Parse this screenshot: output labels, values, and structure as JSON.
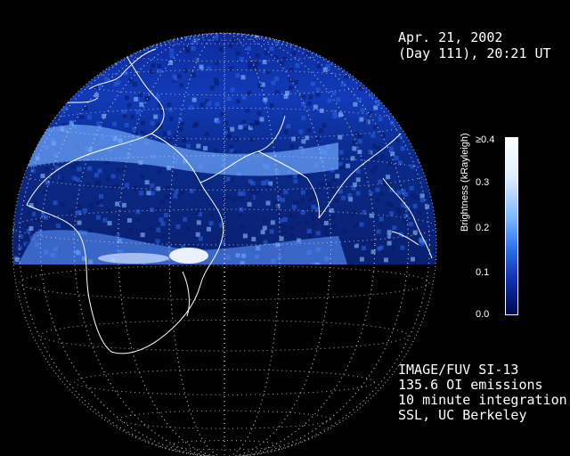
{
  "header": {
    "date": "Apr. 21, 2002",
    "day": "(Day 111), 20:21 UT"
  },
  "colorbar": {
    "label": "Brightness (kRayleigh)",
    "ticks": [
      "≥0.4",
      "0.3",
      "0.2",
      "0.1",
      "0.0"
    ]
  },
  "info": {
    "line1": "IMAGE/FUV SI-13",
    "line2": "135.6 OI emissions",
    "line3": "10 minute integration",
    "line4": "SSL, UC Berkeley"
  },
  "colors": {
    "background": "#000000",
    "emission_low": "#0a1a7a",
    "emission_high": "#ffffff"
  }
}
